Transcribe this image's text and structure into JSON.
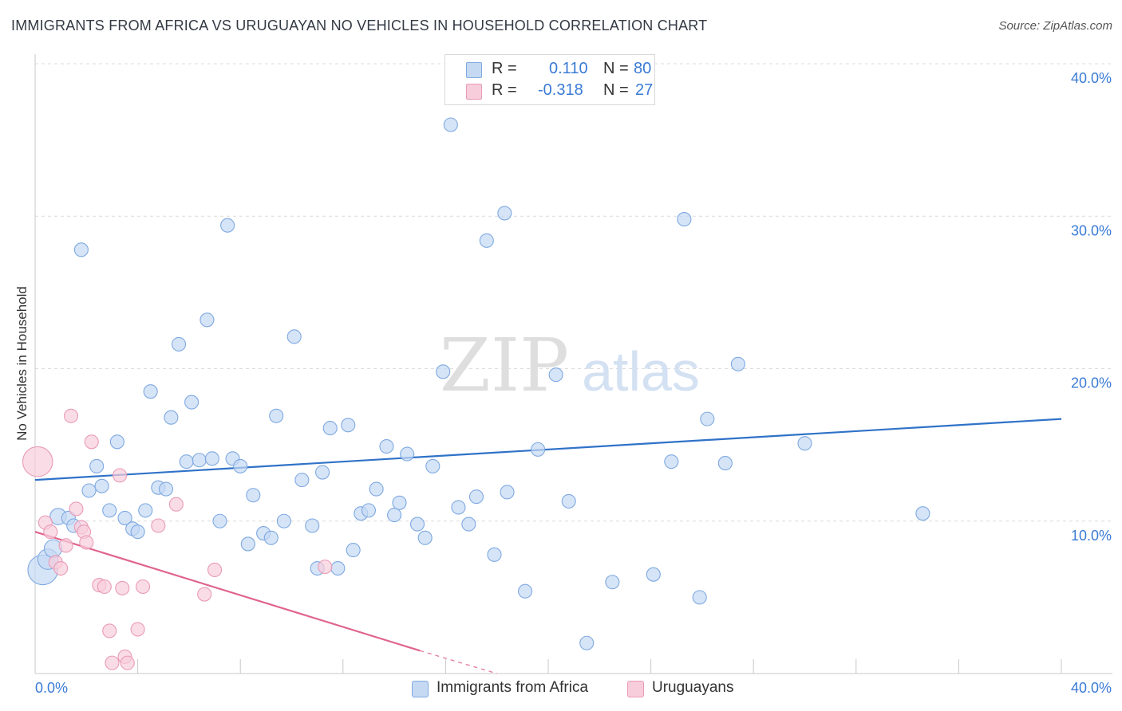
{
  "header": {
    "title": "IMMIGRANTS FROM AFRICA VS URUGUAYAN NO VEHICLES IN HOUSEHOLD CORRELATION CHART",
    "source": "Source: ZipAtlas.com"
  },
  "watermark": {
    "zip": "ZIP",
    "atlas": "atlas"
  },
  "legend_top": [
    {
      "r_label": "R =",
      "r_value": "0.110",
      "n_label": "N =",
      "n_value": "80"
    },
    {
      "r_label": "R =",
      "r_value": "-0.318",
      "n_label": "N =",
      "n_value": "27"
    }
  ],
  "legend_bottom": [
    {
      "label": "Immigrants from Africa"
    },
    {
      "label": "Uruguayans"
    }
  ],
  "colors": {
    "blue_fill": "#c5d9f3",
    "blue_stroke": "#7ea9e1",
    "blue_line": "#2f72c8",
    "pink_fill": "#f8cddb",
    "pink_stroke": "#e99bb6",
    "pink_line": "#e0648f",
    "tick_label": "#3a7bd5"
  },
  "chart_data": {
    "type": "scatter",
    "title": "IMMIGRANTS FROM AFRICA VS URUGUAYAN NO VEHICLES IN HOUSEHOLD CORRELATION CHART",
    "xlabel": "",
    "ylabel": "No Vehicles in Household",
    "xlim": [
      0,
      40
    ],
    "ylim": [
      0,
      40
    ],
    "x_tick_labels": [
      "0.0%",
      "40.0%"
    ],
    "y_tick_values": [
      10,
      20,
      30,
      40
    ],
    "y_tick_labels": [
      "10.0%",
      "20.0%",
      "30.0%",
      "40.0%"
    ],
    "grid": true,
    "legend_position": "top-center",
    "series": [
      {
        "name": "Immigrants from Africa",
        "color": "#7ea9e1",
        "trend": {
          "x": [
            0,
            40
          ],
          "y": [
            12.7,
            16.7
          ]
        },
        "points": [
          {
            "x": 0.3,
            "y": 6.8,
            "s": 2.2
          },
          {
            "x": 0.5,
            "y": 7.5,
            "s": 1.5
          },
          {
            "x": 0.7,
            "y": 8.2,
            "s": 1.3
          },
          {
            "x": 0.9,
            "y": 10.3,
            "s": 1.2
          },
          {
            "x": 1.3,
            "y": 10.2
          },
          {
            "x": 1.5,
            "y": 9.7
          },
          {
            "x": 1.8,
            "y": 27.8
          },
          {
            "x": 2.1,
            "y": 12.0
          },
          {
            "x": 2.4,
            "y": 13.6
          },
          {
            "x": 2.6,
            "y": 12.3
          },
          {
            "x": 2.9,
            "y": 10.7
          },
          {
            "x": 3.2,
            "y": 15.2
          },
          {
            "x": 3.5,
            "y": 10.2
          },
          {
            "x": 3.8,
            "y": 9.5
          },
          {
            "x": 4.0,
            "y": 9.3
          },
          {
            "x": 4.3,
            "y": 10.7
          },
          {
            "x": 4.5,
            "y": 18.5
          },
          {
            "x": 4.8,
            "y": 12.2
          },
          {
            "x": 5.1,
            "y": 12.1
          },
          {
            "x": 5.3,
            "y": 16.8
          },
          {
            "x": 5.6,
            "y": 21.6
          },
          {
            "x": 5.9,
            "y": 13.9
          },
          {
            "x": 6.1,
            "y": 17.8
          },
          {
            "x": 6.4,
            "y": 14.0
          },
          {
            "x": 6.7,
            "y": 23.2
          },
          {
            "x": 6.9,
            "y": 14.1
          },
          {
            "x": 7.2,
            "y": 10.0
          },
          {
            "x": 7.5,
            "y": 29.4
          },
          {
            "x": 7.7,
            "y": 14.1
          },
          {
            "x": 8.0,
            "y": 13.6
          },
          {
            "x": 8.3,
            "y": 8.5
          },
          {
            "x": 8.5,
            "y": 11.7
          },
          {
            "x": 8.9,
            "y": 9.2
          },
          {
            "x": 9.2,
            "y": 8.9
          },
          {
            "x": 9.4,
            "y": 16.9
          },
          {
            "x": 9.7,
            "y": 10.0
          },
          {
            "x": 10.1,
            "y": 22.1
          },
          {
            "x": 10.4,
            "y": 12.7
          },
          {
            "x": 10.8,
            "y": 9.7
          },
          {
            "x": 11.0,
            "y": 6.9
          },
          {
            "x": 11.2,
            "y": 13.2
          },
          {
            "x": 11.5,
            "y": 16.1
          },
          {
            "x": 11.8,
            "y": 6.9
          },
          {
            "x": 12.2,
            "y": 16.3
          },
          {
            "x": 12.4,
            "y": 8.1
          },
          {
            "x": 12.7,
            "y": 10.5
          },
          {
            "x": 13.0,
            "y": 10.7
          },
          {
            "x": 13.3,
            "y": 12.1
          },
          {
            "x": 13.7,
            "y": 14.9
          },
          {
            "x": 14.0,
            "y": 10.4
          },
          {
            "x": 14.2,
            "y": 11.2
          },
          {
            "x": 14.5,
            "y": 14.4
          },
          {
            "x": 14.9,
            "y": 9.8
          },
          {
            "x": 15.2,
            "y": 8.9
          },
          {
            "x": 15.5,
            "y": 13.6
          },
          {
            "x": 15.9,
            "y": 19.8
          },
          {
            "x": 16.2,
            "y": 36.0
          },
          {
            "x": 16.5,
            "y": 10.9
          },
          {
            "x": 16.9,
            "y": 9.8
          },
          {
            "x": 17.2,
            "y": 11.6
          },
          {
            "x": 17.6,
            "y": 28.4
          },
          {
            "x": 17.9,
            "y": 7.8
          },
          {
            "x": 18.3,
            "y": 30.2
          },
          {
            "x": 18.4,
            "y": 11.9
          },
          {
            "x": 19.1,
            "y": 5.4
          },
          {
            "x": 19.6,
            "y": 14.7
          },
          {
            "x": 20.3,
            "y": 19.6
          },
          {
            "x": 20.8,
            "y": 11.3
          },
          {
            "x": 21.5,
            "y": 2.0
          },
          {
            "x": 22.5,
            "y": 6.0
          },
          {
            "x": 23.0,
            "y": 40.1
          },
          {
            "x": 24.1,
            "y": 6.5
          },
          {
            "x": 24.8,
            "y": 13.9
          },
          {
            "x": 25.3,
            "y": 29.8
          },
          {
            "x": 25.9,
            "y": 5.0
          },
          {
            "x": 26.2,
            "y": 16.7
          },
          {
            "x": 26.9,
            "y": 13.8
          },
          {
            "x": 27.4,
            "y": 20.3
          },
          {
            "x": 30.0,
            "y": 15.1
          },
          {
            "x": 34.6,
            "y": 10.5
          }
        ]
      },
      {
        "name": "Uruguayans",
        "color": "#e99bb6",
        "trend": {
          "x": [
            0,
            15
          ],
          "y": [
            9.3,
            1.5
          ],
          "dashed_to": {
            "x": 18,
            "y": 0
          }
        },
        "points": [
          {
            "x": 0.1,
            "y": 13.9,
            "s": 2.2
          },
          {
            "x": 0.4,
            "y": 9.9
          },
          {
            "x": 0.6,
            "y": 9.3
          },
          {
            "x": 0.8,
            "y": 7.3
          },
          {
            "x": 1.0,
            "y": 6.9
          },
          {
            "x": 1.2,
            "y": 8.4
          },
          {
            "x": 1.4,
            "y": 16.9
          },
          {
            "x": 1.6,
            "y": 10.8
          },
          {
            "x": 1.8,
            "y": 9.6
          },
          {
            "x": 1.9,
            "y": 9.3
          },
          {
            "x": 2.0,
            "y": 8.6
          },
          {
            "x": 2.2,
            "y": 15.2
          },
          {
            "x": 2.5,
            "y": 5.8
          },
          {
            "x": 2.7,
            "y": 5.7
          },
          {
            "x": 2.9,
            "y": 2.8
          },
          {
            "x": 3.0,
            "y": 0.7
          },
          {
            "x": 3.3,
            "y": 13.0
          },
          {
            "x": 3.4,
            "y": 5.6
          },
          {
            "x": 3.5,
            "y": 1.1
          },
          {
            "x": 3.6,
            "y": 0.7
          },
          {
            "x": 4.0,
            "y": 2.9
          },
          {
            "x": 4.2,
            "y": 5.7
          },
          {
            "x": 4.8,
            "y": 9.7
          },
          {
            "x": 5.5,
            "y": 11.1
          },
          {
            "x": 6.6,
            "y": 5.2
          },
          {
            "x": 7.0,
            "y": 6.8
          },
          {
            "x": 11.3,
            "y": 7.0
          }
        ]
      }
    ]
  }
}
